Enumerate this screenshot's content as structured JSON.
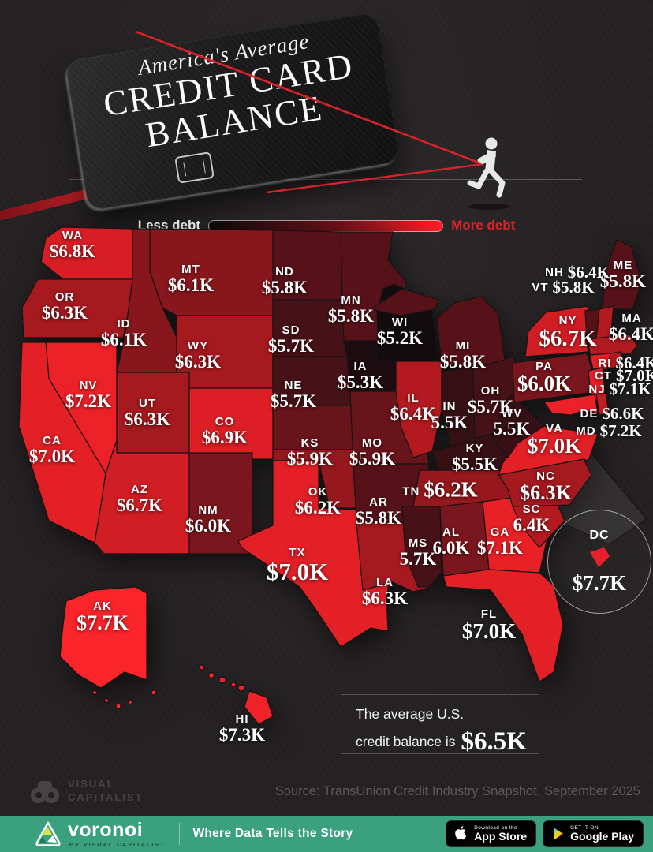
{
  "header": {
    "card": {
      "subtitle": "America's Average",
      "title_line1": "CREDIT CARD",
      "title_line2": "BALANCE"
    },
    "runner_icon": "running-person-silhouette"
  },
  "legend": {
    "less_label": "Less debt",
    "more_label": "More debt",
    "gradient_start": "#0d0a0b",
    "gradient_end": "#ff1d24"
  },
  "map": {
    "states": [
      {
        "abbr": "WA",
        "value": "$6.8K",
        "color": "#d81e25"
      },
      {
        "abbr": "OR",
        "value": "$6.3K",
        "color": "#a5191f"
      },
      {
        "abbr": "CA",
        "value": "$7.0K",
        "color": "#e32026"
      },
      {
        "abbr": "NV",
        "value": "$7.2K",
        "color": "#ec2128"
      },
      {
        "abbr": "ID",
        "value": "$6.1K",
        "color": "#88171d"
      },
      {
        "abbr": "MT",
        "value": "$6.1K",
        "color": "#88171d"
      },
      {
        "abbr": "WY",
        "value": "$6.3K",
        "color": "#a5191f"
      },
      {
        "abbr": "UT",
        "value": "$6.3K",
        "color": "#a5191f"
      },
      {
        "abbr": "AZ",
        "value": "$6.7K",
        "color": "#d11d24"
      },
      {
        "abbr": "NM",
        "value": "$6.0K",
        "color": "#7a161d"
      },
      {
        "abbr": "CO",
        "value": "$6.9K",
        "color": "#dd1f25"
      },
      {
        "abbr": "ND",
        "value": "$5.8K",
        "color": "#571219"
      },
      {
        "abbr": "SD",
        "value": "$5.7K",
        "color": "#471118"
      },
      {
        "abbr": "NE",
        "value": "$5.7K",
        "color": "#471118"
      },
      {
        "abbr": "KS",
        "value": "$5.9K",
        "color": "#68141b"
      },
      {
        "abbr": "OK",
        "value": "$6.2K",
        "color": "#96181e"
      },
      {
        "abbr": "TX",
        "value": "$7.0K",
        "color": "#e32026"
      },
      {
        "abbr": "MN",
        "value": "$5.8K",
        "color": "#571219"
      },
      {
        "abbr": "IA",
        "value": "$5.3K",
        "color": "#1d0d10"
      },
      {
        "abbr": "MO",
        "value": "$5.9K",
        "color": "#68141b"
      },
      {
        "abbr": "AR",
        "value": "$5.8K",
        "color": "#571219"
      },
      {
        "abbr": "LA",
        "value": "$6.3K",
        "color": "#a5191f"
      },
      {
        "abbr": "WI",
        "value": "$5.2K",
        "color": "#120c0e"
      },
      {
        "abbr": "IL",
        "value": "$6.4K",
        "color": "#b31a20"
      },
      {
        "abbr": "IN",
        "value": "5.5K",
        "color": "#371015"
      },
      {
        "abbr": "MI",
        "value": "$5.8K",
        "color": "#571219"
      },
      {
        "abbr": "OH",
        "value": "$5.7K",
        "color": "#471118"
      },
      {
        "abbr": "KY",
        "value": "$5.5K",
        "color": "#371015"
      },
      {
        "abbr": "TN",
        "value": "$6.2K",
        "color": "#96181e"
      },
      {
        "abbr": "MS",
        "value": "5.7K",
        "color": "#471118"
      },
      {
        "abbr": "AL",
        "value": "6.0K",
        "color": "#7a161d"
      },
      {
        "abbr": "GA",
        "value": "$7.1K",
        "color": "#e82127"
      },
      {
        "abbr": "FL",
        "value": "$7.0K",
        "color": "#e32026"
      },
      {
        "abbr": "SC",
        "value": "6.4K",
        "color": "#b31a20"
      },
      {
        "abbr": "NC",
        "value": "$6.3K",
        "color": "#a5191f"
      },
      {
        "abbr": "VA",
        "value": "$7.0K",
        "color": "#e32026"
      },
      {
        "abbr": "WV",
        "value": "5.5K",
        "color": "#371015"
      },
      {
        "abbr": "PA",
        "value": "$6.0K",
        "color": "#7a161d"
      },
      {
        "abbr": "NY",
        "value": "$6.7K",
        "color": "#d11d24"
      },
      {
        "abbr": "ME",
        "value": "$5.8K",
        "color": "#571219"
      },
      {
        "abbr": "NH",
        "value": "$6.4K",
        "color": "#b31a20"
      },
      {
        "abbr": "VT",
        "value": "$5.8K",
        "color": "#571219"
      },
      {
        "abbr": "MA",
        "value": "$6.4K",
        "color": "#b31a20"
      },
      {
        "abbr": "RI",
        "value": "$6.4K",
        "color": "#b31a20"
      },
      {
        "abbr": "CT",
        "value": "$7.0K",
        "color": "#e32026"
      },
      {
        "abbr": "NJ",
        "value": "$7.1K",
        "color": "#e82127"
      },
      {
        "abbr": "DE",
        "value": "$6.6K",
        "color": "#c81c22"
      },
      {
        "abbr": "MD",
        "value": "$7.2K",
        "color": "#ec2128"
      },
      {
        "abbr": "AK",
        "value": "$7.7K",
        "color": "#fa242b"
      },
      {
        "abbr": "HI",
        "value": "$7.3K",
        "color": "#f02229"
      }
    ],
    "dc": {
      "abbr": "DC",
      "value": "$7.7K",
      "color": "#fa242b"
    }
  },
  "note": {
    "line1": "The average U.S.",
    "line2": "credit balance is",
    "value": "$6.5K"
  },
  "source": "Source: TransUnion Credit Industry Snapshot, September 2025",
  "vc_logo": {
    "line1": "VISUAL",
    "line2": "CAPITALIST"
  },
  "footer": {
    "brand": "voronoi",
    "brand_sub": "BY VISUAL CAPITALIST",
    "tagline": "Where Data Tells the Story",
    "appstore": {
      "line1": "Download on the",
      "line2": "App Store"
    },
    "googleplay": {
      "line1": "GET IT ON",
      "line2": "Google Play"
    },
    "bg_color": "#3aa07e"
  },
  "chart_data": {
    "type": "heatmap",
    "subtype": "us-choropleth",
    "title": "America's Average Credit Card Balance",
    "unit": "USD thousands",
    "legend": {
      "low": "Less debt",
      "high": "More debt",
      "low_color": "#0d0a0b",
      "high_color": "#ff1d24"
    },
    "categories": [
      "WA",
      "OR",
      "CA",
      "NV",
      "ID",
      "MT",
      "WY",
      "UT",
      "AZ",
      "NM",
      "CO",
      "ND",
      "SD",
      "NE",
      "KS",
      "OK",
      "TX",
      "MN",
      "IA",
      "MO",
      "AR",
      "LA",
      "WI",
      "IL",
      "IN",
      "MI",
      "OH",
      "KY",
      "TN",
      "MS",
      "AL",
      "GA",
      "FL",
      "SC",
      "NC",
      "VA",
      "WV",
      "PA",
      "NY",
      "ME",
      "NH",
      "VT",
      "MA",
      "RI",
      "CT",
      "NJ",
      "DE",
      "MD",
      "AK",
      "HI",
      "DC"
    ],
    "values": [
      6.8,
      6.3,
      7.0,
      7.2,
      6.1,
      6.1,
      6.3,
      6.3,
      6.7,
      6.0,
      6.9,
      5.8,
      5.7,
      5.7,
      5.9,
      6.2,
      7.0,
      5.8,
      5.3,
      5.9,
      5.8,
      6.3,
      5.2,
      6.4,
      5.5,
      5.8,
      5.7,
      5.5,
      6.2,
      5.7,
      6.0,
      7.1,
      7.0,
      6.4,
      6.3,
      7.0,
      5.5,
      6.0,
      6.7,
      5.8,
      6.4,
      5.8,
      6.4,
      6.4,
      7.0,
      7.1,
      6.6,
      7.2,
      7.7,
      7.3,
      7.7
    ],
    "us_average": 6.5,
    "annotations": [
      "The average U.S. credit balance is $6.5K"
    ],
    "source": "Source: TransUnion Credit Industry Snapshot, September 2025"
  }
}
